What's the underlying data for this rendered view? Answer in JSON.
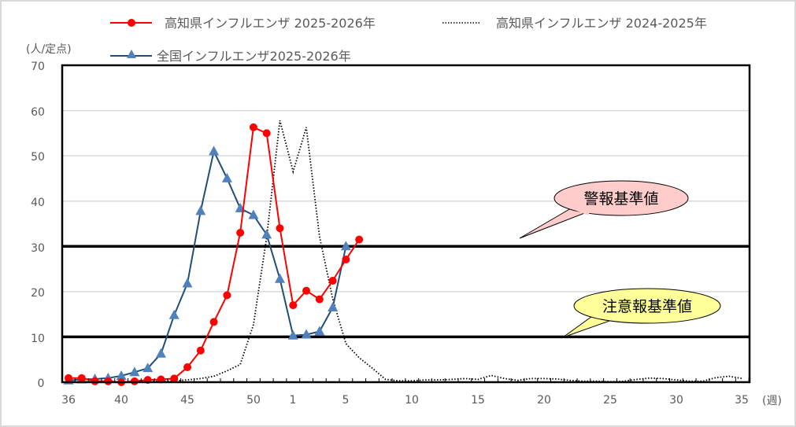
{
  "chart_data": {
    "type": "line",
    "title": "",
    "ylabel": "(人/定点)",
    "xlabel": "(週)",
    "ylim": [
      0,
      70
    ],
    "yticks": [
      0,
      10,
      20,
      30,
      40,
      50,
      60,
      70
    ],
    "grid": true,
    "legend_position": "top",
    "x": [
      36,
      37,
      38,
      39,
      40,
      41,
      42,
      43,
      44,
      45,
      46,
      47,
      48,
      49,
      50,
      51,
      52,
      1,
      2,
      3,
      4,
      5,
      6,
      7,
      8,
      9,
      10,
      11,
      12,
      13,
      14,
      15,
      16,
      17,
      18,
      19,
      20,
      21,
      22,
      23,
      24,
      25,
      26,
      27,
      28,
      29,
      30,
      31,
      32,
      33,
      34,
      35
    ],
    "xtick_labels": [
      "36",
      "40",
      "45",
      "50",
      "1",
      "5",
      "10",
      "15",
      "20",
      "25",
      "30",
      "35"
    ],
    "series": [
      {
        "name": "高知県インフルエンザ 2025-2026年",
        "color": "#ff0000",
        "marker": "circle",
        "line": "solid",
        "values": [
          0.9,
          0.9,
          0.2,
          0.2,
          0.0,
          0.2,
          0.5,
          0.6,
          0.8,
          3.3,
          7.0,
          13.3,
          19.2,
          33.0,
          56.3,
          55.0,
          34.0,
          17.0,
          20.2,
          18.3,
          22.4,
          27.1,
          31.5
        ]
      },
      {
        "name": "全国インフルエンザ2025-2026年",
        "color": "#4f81bd",
        "line_color": "#1f4e79",
        "marker": "triangle",
        "line": "solid",
        "values": [
          0.4,
          0.6,
          0.7,
          0.9,
          1.4,
          2.2,
          3.1,
          6.3,
          14.8,
          21.8,
          37.8,
          51.0,
          45.0,
          38.4,
          36.9,
          32.6,
          22.8,
          10.3,
          10.5,
          11.2,
          16.5,
          30.0
        ]
      },
      {
        "name": "高知県インフルエンザ 2024-2025年",
        "color": "#000000",
        "marker": "none",
        "line": "dotted",
        "values": [
          0.1,
          0.1,
          0.1,
          0.1,
          0.1,
          0.1,
          0.2,
          0.2,
          0.3,
          0.5,
          0.8,
          1.3,
          2.5,
          3.9,
          12.7,
          32.0,
          57.8,
          46.5,
          56.3,
          32.2,
          18.4,
          8.5,
          5.4,
          3.1,
          0.6,
          0.3,
          0.3,
          0.5,
          0.5,
          0.6,
          0.8,
          0.6,
          1.5,
          0.8,
          0.4,
          0.8,
          0.8,
          0.7,
          0.4,
          0.2,
          0.2,
          0.1,
          0.2,
          0.6,
          0.9,
          0.8,
          0.5,
          0.2,
          0.2,
          1.0,
          1.3,
          0.8
        ]
      }
    ],
    "reference_lines": [
      {
        "label": "警報基準値",
        "value": 30,
        "callout_color": "#ffcccc"
      },
      {
        "label": "注意報基準値",
        "value": 10,
        "callout_color": "#ffff99"
      }
    ]
  },
  "legend": {
    "kochi_2025": "高知県インフルエンザ 2025-2026年",
    "kochi_2024": "高知県インフルエンザ 2024-2025年",
    "national_2025": "全国インフルエンザ2025-2026年"
  },
  "axis": {
    "y_unit": "(人/定点)",
    "x_unit": "(週)",
    "y_labels": [
      "70",
      "60",
      "50",
      "40",
      "30",
      "20",
      "10",
      "0"
    ],
    "x_labels": [
      "36",
      "40",
      "45",
      "50",
      "1",
      "5",
      "10",
      "15",
      "20",
      "25",
      "30",
      "35"
    ]
  },
  "callouts": {
    "warning": "警報基準値",
    "advisory": "注意報基準値"
  }
}
